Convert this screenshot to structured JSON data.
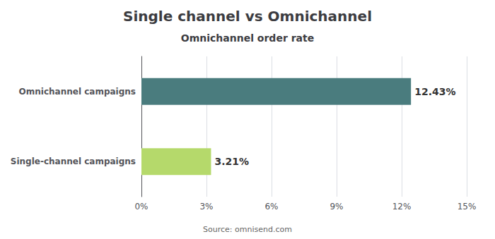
{
  "chart_data": {
    "type": "bar",
    "title": "Single channel vs Omnichannel",
    "subtitle": "Omnichannel order rate",
    "annotations": [
      "Source: omnisend.com"
    ],
    "orientation": "horizontal",
    "categories": [
      "Single-channel campaigns",
      "Omnichannel campaigns"
    ],
    "values": [
      3.21,
      12.43
    ],
    "value_labels": [
      "3.21%",
      "12.43%"
    ],
    "data_labels": true,
    "colors": [
      "#b5d96b",
      "#4a7c7e"
    ],
    "xlim": [
      0,
      15
    ],
    "xticks": [
      {
        "value": 0,
        "label": "0%"
      },
      {
        "value": 3,
        "label": "3%"
      },
      {
        "value": 6,
        "label": "6%"
      },
      {
        "value": 9,
        "label": "9%"
      },
      {
        "value": 12,
        "label": "12%"
      },
      {
        "value": 15,
        "label": "15%"
      }
    ],
    "grid": true
  }
}
